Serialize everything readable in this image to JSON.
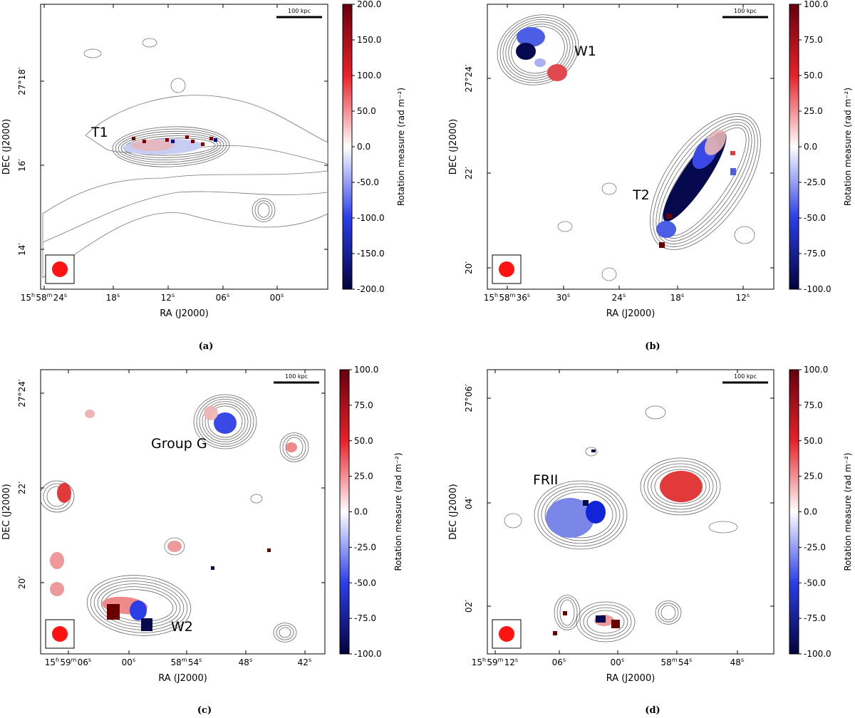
{
  "figure": {
    "panels": [
      {
        "id": "a",
        "caption": "(a)",
        "scalebar_label": "100 kpc",
        "source_labels": [
          "T1"
        ],
        "colorbar_label": "Rotation measure (rad m⁻²)",
        "colorbar_ticks": [
          "200.0",
          "150.0",
          "100.0",
          "50.0",
          "0.0",
          "-50.0",
          "-100.0",
          "-150.0",
          "-200.0"
        ]
      },
      {
        "id": "b",
        "caption": "(b)",
        "scalebar_label": "100 kpc",
        "source_labels": [
          "W1",
          "T2"
        ],
        "colorbar_label": "Rotation measure (rad m⁻²)",
        "colorbar_ticks": [
          "100.0",
          "75.0",
          "50.0",
          "25.0",
          "0.0",
          "-25.0",
          "-50.0",
          "-75.0",
          "-100.0"
        ]
      },
      {
        "id": "c",
        "caption": "(c)",
        "scalebar_label": "100 kpc",
        "source_labels": [
          "Group G",
          "W2"
        ],
        "colorbar_label": "Rotation measure (rad m⁻²)",
        "colorbar_ticks": [
          "100.0",
          "75.0",
          "50.0",
          "25.0",
          "0.0",
          "-25.0",
          "-50.0",
          "-75.0",
          "-100.0"
        ]
      },
      {
        "id": "d",
        "caption": "(d)",
        "scalebar_label": "100 kpc",
        "source_labels": [
          "FRII"
        ],
        "colorbar_label": "Rotation measure (rad m⁻²)",
        "colorbar_ticks": [
          "100.0",
          "75.0",
          "50.0",
          "25.0",
          "0.0",
          "-25.0",
          "-50.0",
          "-75.0",
          "-100.0"
        ]
      }
    ]
  },
  "chart_data": [
    {
      "type": "heatmap",
      "panel": "a",
      "xlabel": "RA (J2000)",
      "ylabel": "DEC (J2000)",
      "x_ticks": [
        "15h58m24s",
        "18s",
        "12s",
        "06s",
        "00s"
      ],
      "y_ticks": [
        "27°18′",
        "16′",
        "14′"
      ],
      "clim": [
        -200,
        200
      ],
      "colorbar_label": "Rotation measure (rad m⁻²)"
    },
    {
      "type": "heatmap",
      "panel": "b",
      "xlabel": "RA (J2000)",
      "ylabel": "DEC (J2000)",
      "x_ticks": [
        "15h58m36s",
        "30s",
        "24s",
        "18s",
        "12s"
      ],
      "y_ticks": [
        "27°24′",
        "22′",
        "20′"
      ],
      "clim": [
        -100,
        100
      ],
      "colorbar_label": "Rotation measure (rad m⁻²)"
    },
    {
      "type": "heatmap",
      "panel": "c",
      "xlabel": "RA (J2000)",
      "ylabel": "DEC (J2000)",
      "x_ticks": [
        "15h59m06s",
        "00s",
        "58m54s",
        "48s",
        "42s"
      ],
      "y_ticks": [
        "27°24′",
        "22′",
        "20′"
      ],
      "clim": [
        -100,
        100
      ],
      "colorbar_label": "Rotation measure (rad m⁻²)"
    },
    {
      "type": "heatmap",
      "panel": "d",
      "xlabel": "RA (J2000)",
      "ylabel": "DEC (J2000)",
      "x_ticks": [
        "15h59m12s",
        "06s",
        "00s",
        "58m54s",
        "48s"
      ],
      "y_ticks": [
        "27°06′",
        "04′",
        "02′"
      ],
      "clim": [
        -100,
        100
      ],
      "colorbar_label": "Rotation measure (rad m⁻²)"
    }
  ]
}
